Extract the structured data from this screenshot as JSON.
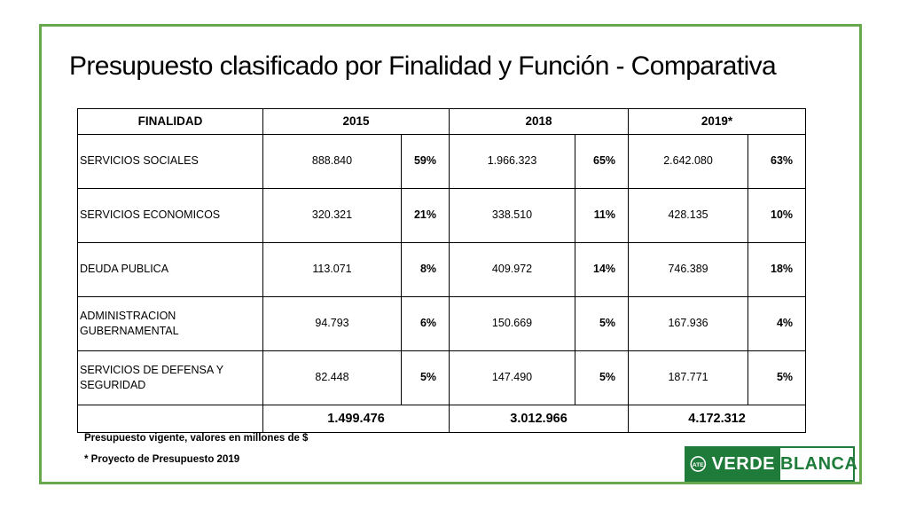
{
  "title": "Presupuesto clasificado por Finalidad y Función - Comparativa",
  "table": {
    "headers": [
      "FINALIDAD",
      "2015",
      "2018",
      "2019*"
    ],
    "rows": [
      {
        "label": "SERVICIOS SOCIALES",
        "v2015": "888.840",
        "p2015": "59%",
        "v2018": "1.966.323",
        "p2018": "65%",
        "v2019": "2.642.080",
        "p2019": "63%"
      },
      {
        "label": "SERVICIOS ECONOMICOS",
        "v2015": "320.321",
        "p2015": "21%",
        "v2018": "338.510",
        "p2018": "11%",
        "v2019": "428.135",
        "p2019": "10%"
      },
      {
        "label": "DEUDA PUBLICA",
        "v2015": "113.071",
        "p2015": "8%",
        "v2018": "409.972",
        "p2018": "14%",
        "v2019": "746.389",
        "p2019": "18%"
      },
      {
        "label": "ADMINISTRACION GUBERNAMENTAL",
        "v2015": "94.793",
        "p2015": "6%",
        "v2018": "150.669",
        "p2018": "5%",
        "v2019": "167.936",
        "p2019": "4%"
      },
      {
        "label": "SERVICIOS DE DEFENSA Y SEGURIDAD",
        "v2015": "82.448",
        "p2015": "5%",
        "v2018": "147.490",
        "p2018": "5%",
        "v2019": "187.771",
        "p2019": "5%"
      }
    ],
    "totals": {
      "t2015": "1.499.476",
      "t2018": "3.012.966",
      "t2019": "4.172.312"
    }
  },
  "notes": [
    "Presupuesto vigente, valores en millones de $",
    "* Proyecto de Presupuesto 2019"
  ],
  "logo": {
    "emblem": "ATE",
    "left": "VERDE",
    "right": "BLANCA",
    "color": "#1e7b3a"
  },
  "frame_color": "#6aa84f"
}
